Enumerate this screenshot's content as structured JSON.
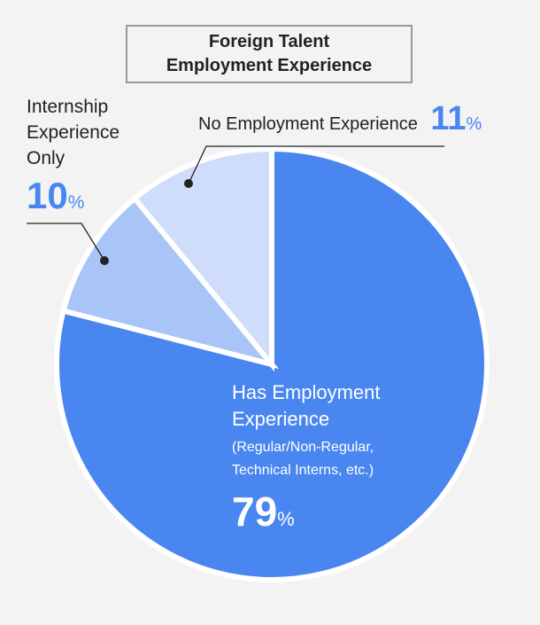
{
  "title_lines": [
    "Foreign Talent",
    "Employment Experience"
  ],
  "chart_data": {
    "type": "pie",
    "title": "Foreign Talent Employment Experience",
    "slices": [
      {
        "label": "Has Employment Experience",
        "sublabel": "(Regular/Non-Regular, Technical Interns, etc.)",
        "value": 79,
        "color": "#4a86f0"
      },
      {
        "label": "Internship Experience Only",
        "value": 10,
        "color": "#a9c5f8"
      },
      {
        "label": "No Employment Experience",
        "value": 11,
        "color": "#cfdcfa"
      }
    ],
    "unit": "%"
  },
  "labels": {
    "no_employment": {
      "name": "No Employment Experience",
      "value": "11",
      "unit": "%"
    },
    "internship": {
      "name_lines": [
        "Internship",
        "Experience",
        "Only"
      ],
      "value": "10",
      "unit": "%"
    },
    "has_employment": {
      "name_lines": [
        "Has Employment",
        "Experience"
      ],
      "sub_lines": [
        "(Regular/Non-Regular,",
        "Technical Interns, etc.)"
      ],
      "value": "79",
      "unit": "%"
    }
  }
}
